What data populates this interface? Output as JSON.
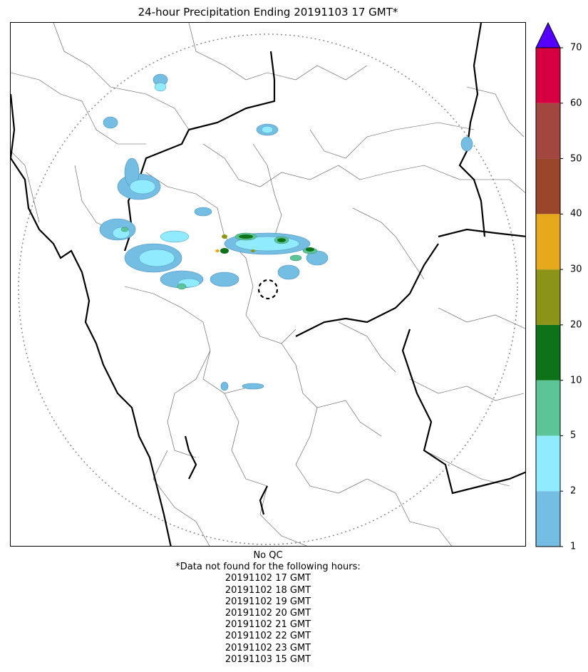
{
  "title": "24-hour Precipitation Ending 20191103 17 GMT*",
  "colorbar": {
    "levels": [
      1,
      2,
      5,
      10,
      20,
      30,
      40,
      50,
      60,
      70
    ],
    "colors": [
      "#74BDE3",
      "#91EBFF",
      "#5CC598",
      "#0E7318",
      "#8C9418",
      "#E7A91C",
      "#99462A",
      "#A2473F",
      "#D60040"
    ],
    "extend_color": "#5500FF",
    "tick_labels": [
      "1",
      "2",
      "5",
      "10",
      "20",
      "30",
      "40",
      "50",
      "60",
      "70"
    ]
  },
  "footer": {
    "qc": "No QC",
    "note": "*Data not found for the following hours:",
    "missing_hours": [
      "20191102 17 GMT",
      "20191102 18 GMT",
      "20191102 19 GMT",
      "20191102 20 GMT",
      "20191102 21 GMT",
      "20191102 22 GMT",
      "20191102 23 GMT",
      "20191103 15 GMT"
    ]
  }
}
